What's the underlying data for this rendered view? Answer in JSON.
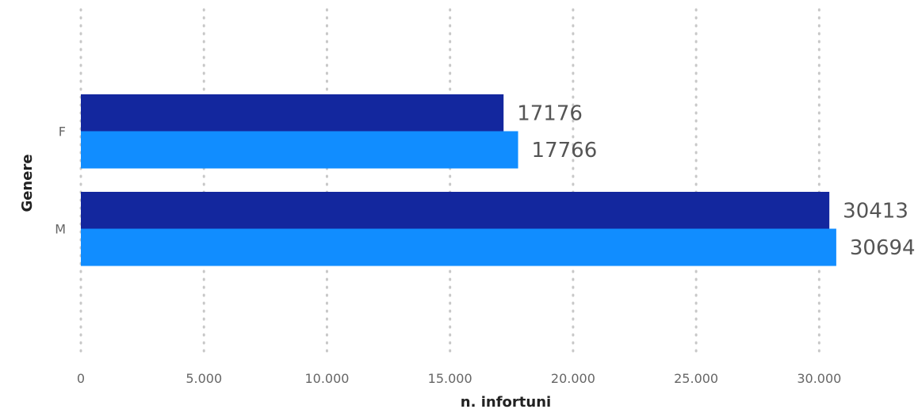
{
  "chart_data": {
    "type": "bar",
    "orientation": "horizontal",
    "categories": [
      "F",
      "M"
    ],
    "series": [
      {
        "values": [
          17176,
          30413
        ],
        "color": "#13279e"
      },
      {
        "values": [
          17766,
          30694
        ],
        "color": "#118dff"
      }
    ],
    "xlabel": "n. infortuni",
    "ylabel": "Genere",
    "xlim": [
      0,
      32000
    ],
    "xticks": [
      0,
      5000,
      10000,
      15000,
      20000,
      25000,
      30000
    ],
    "xtick_labels": [
      "0",
      "5.000",
      "10.000",
      "15.000",
      "20.000",
      "25.000",
      "30.000"
    ],
    "data_labels": [
      [
        "17176",
        "30413"
      ],
      [
        "17766",
        "30694"
      ]
    ],
    "grid": true,
    "legend": "none"
  }
}
